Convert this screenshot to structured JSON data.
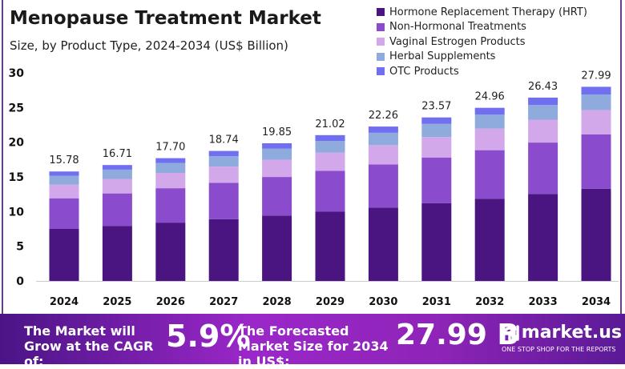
{
  "chart_data": {
    "type": "bar",
    "stacked": true,
    "title": "Menopause Treatment Market",
    "subtitle": "Size, by Product Type, 2024-2034 (US$ Billion)",
    "categories": [
      "2024",
      "2025",
      "2026",
      "2027",
      "2028",
      "2029",
      "2030",
      "2031",
      "2032",
      "2033",
      "2034"
    ],
    "totals": [
      "15.78",
      "16.71",
      "17.70",
      "18.74",
      "19.85",
      "21.02",
      "22.26",
      "23.57",
      "24.96",
      "26.43",
      "27.99"
    ],
    "series": [
      {
        "name": "Hormone Replacement Therapy (HRT)",
        "color": "#4a1580",
        "values": [
          7.5,
          7.94,
          8.41,
          8.9,
          9.43,
          9.98,
          10.57,
          11.2,
          11.86,
          12.55,
          13.3
        ]
      },
      {
        "name": "Non-Hormonal Treatments",
        "color": "#8a4ccc",
        "values": [
          4.42,
          4.68,
          4.96,
          5.25,
          5.56,
          5.89,
          6.23,
          6.6,
          6.99,
          7.4,
          7.84
        ]
      },
      {
        "name": "Vaginal Estrogen Products",
        "color": "#d2a8ea",
        "values": [
          1.97,
          2.09,
          2.21,
          2.34,
          2.48,
          2.63,
          2.78,
          2.95,
          3.12,
          3.3,
          3.5
        ]
      },
      {
        "name": "Herbal Supplements",
        "color": "#8faadc",
        "values": [
          1.26,
          1.34,
          1.42,
          1.5,
          1.59,
          1.68,
          1.78,
          1.89,
          2.0,
          2.11,
          2.24
        ]
      },
      {
        "name": "OTC Products",
        "color": "#6f6ff0",
        "values": [
          0.63,
          0.66,
          0.7,
          0.75,
          0.79,
          0.84,
          0.9,
          0.93,
          0.99,
          1.07,
          1.11
        ]
      }
    ],
    "yticks": [
      "0",
      "5",
      "10",
      "15",
      "20",
      "25",
      "30"
    ],
    "ylim": [
      0,
      30
    ],
    "grid": false,
    "legend_placement": "top-right"
  },
  "banner": {
    "cagr_label": "The Market will Grow at the CAGR of:",
    "cagr_value": "5.9%",
    "forecast_label": "The Forecasted Market Size for 2034 in US$:",
    "forecast_value": "27.99 B",
    "brand": "market.us",
    "tagline": "ONE STOP SHOP FOR THE REPORTS"
  }
}
